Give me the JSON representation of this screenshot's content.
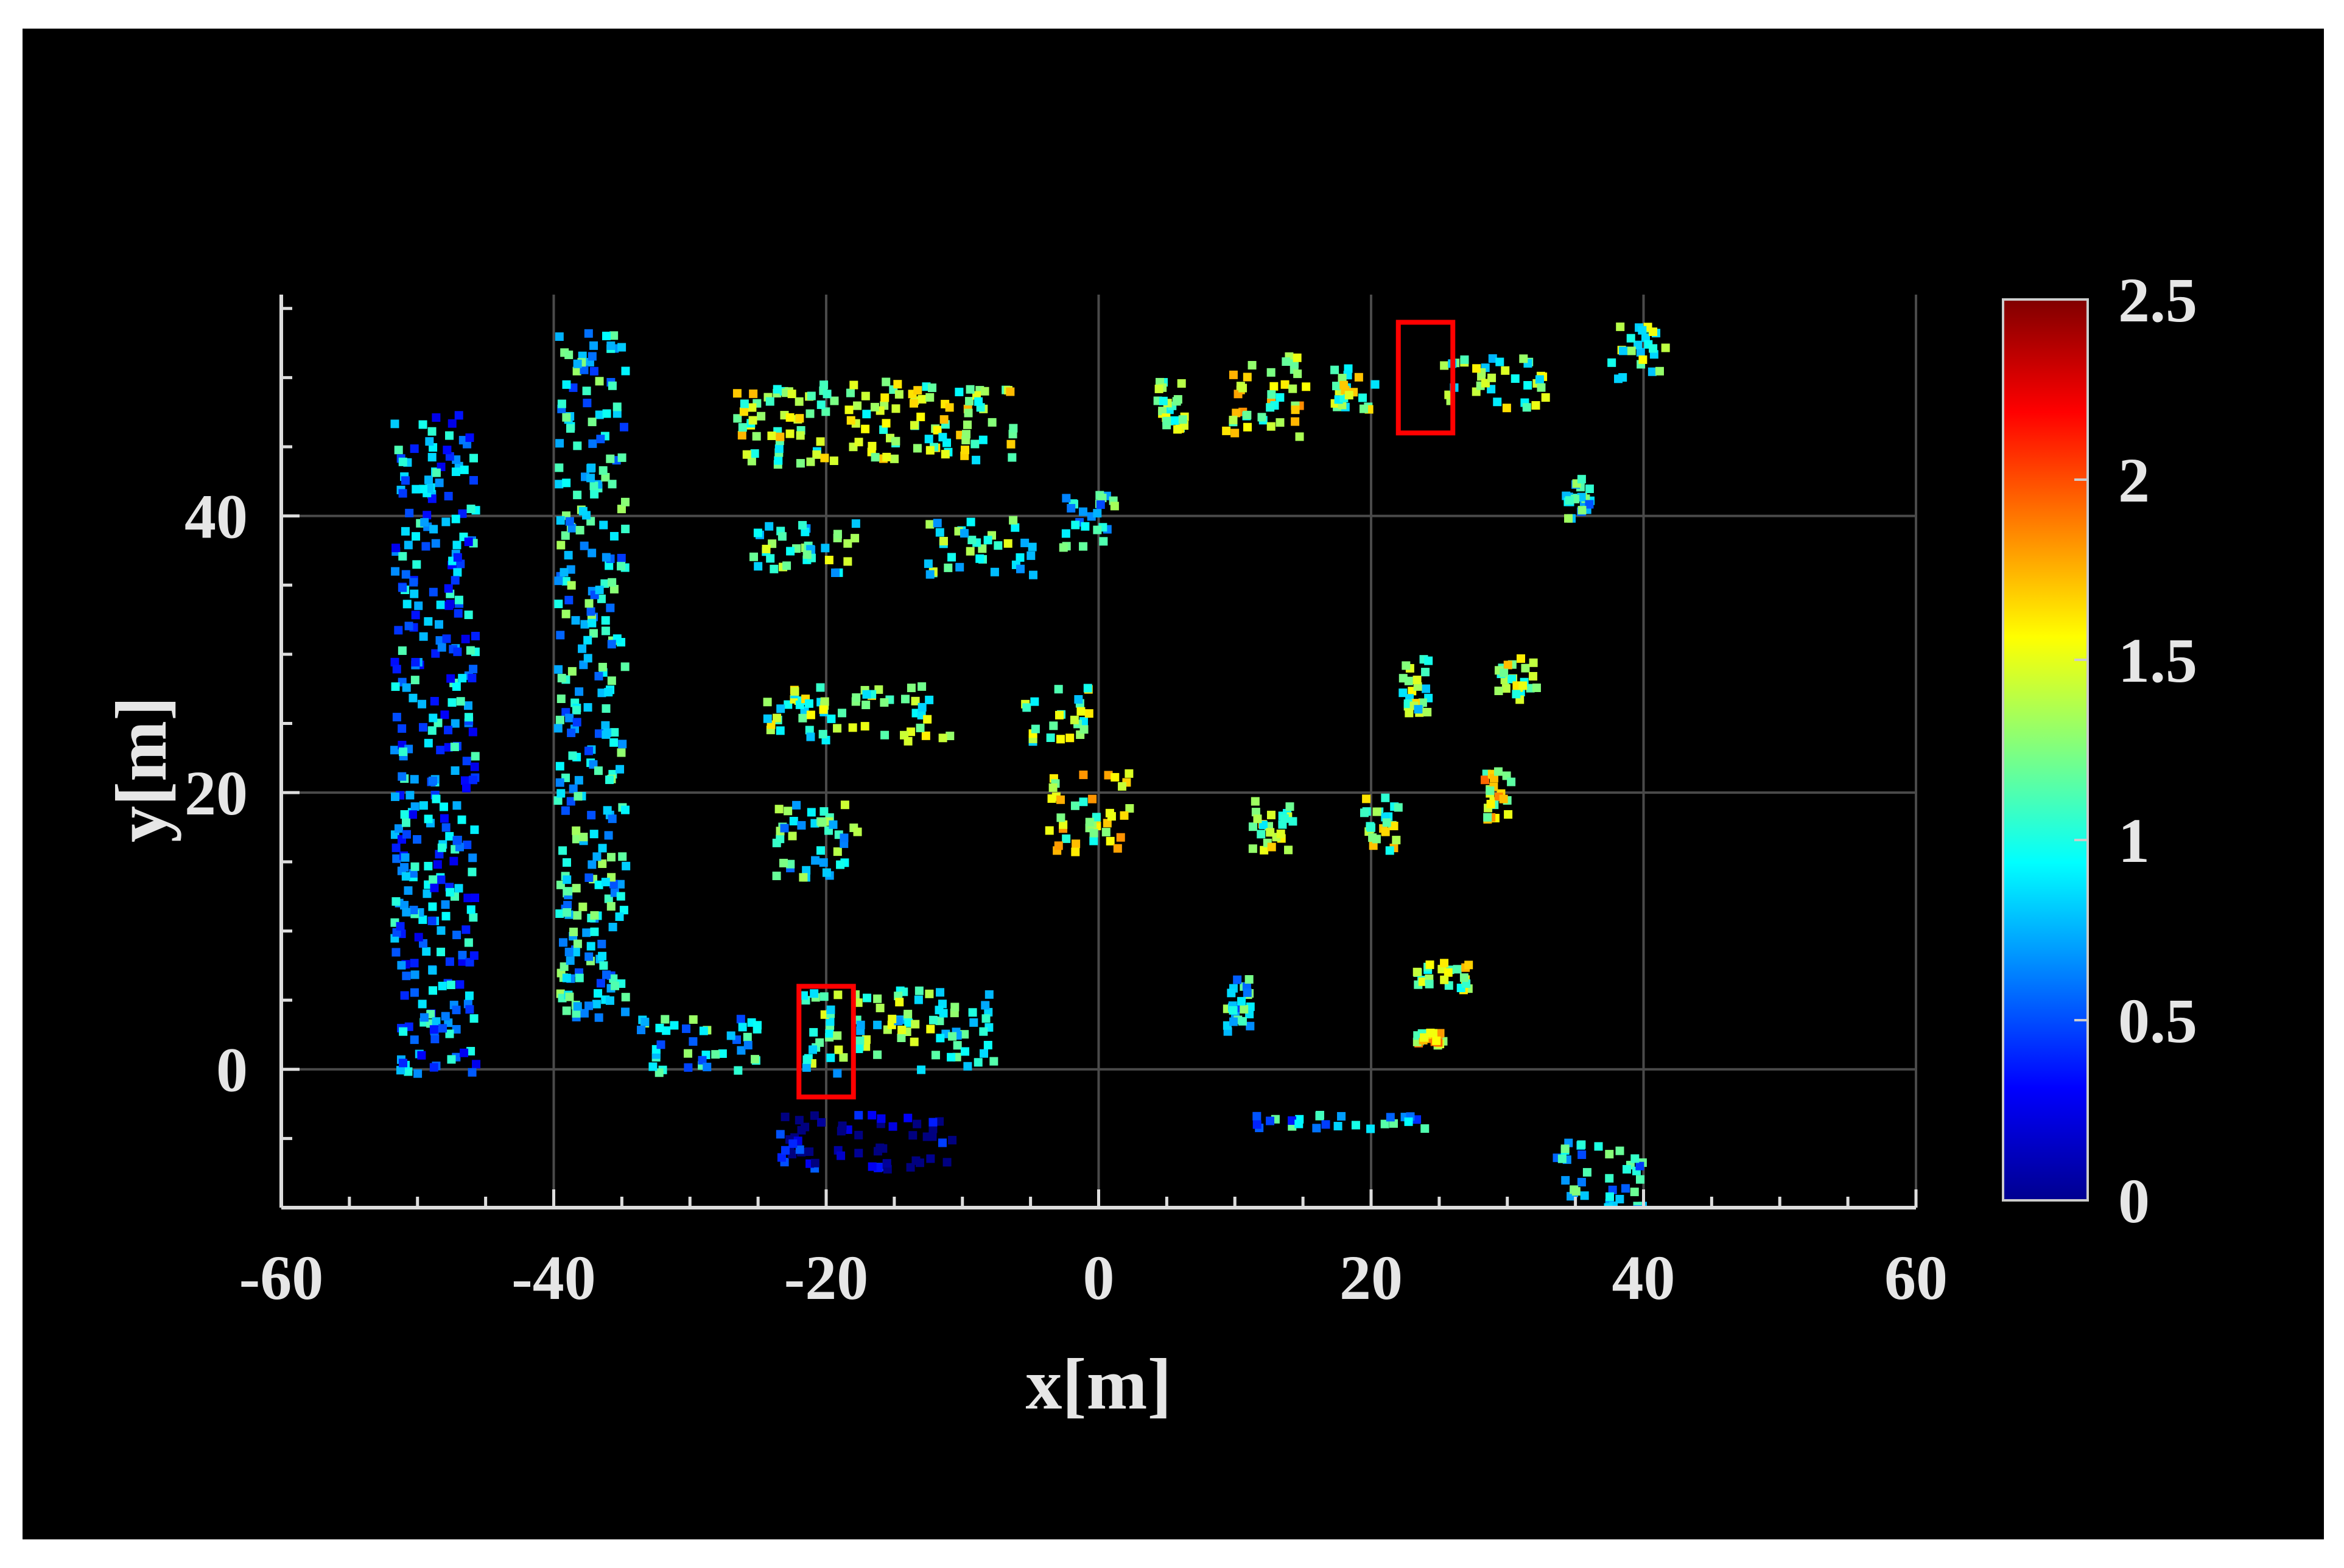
{
  "chart_data": {
    "type": "scatter",
    "xlabel": "x[m]",
    "ylabel": "y[m]",
    "xlim": [
      -60,
      60
    ],
    "ylim": [
      -10,
      56
    ],
    "x_ticks": [
      -60,
      -40,
      -20,
      0,
      20,
      40,
      60
    ],
    "y_ticks": [
      0,
      20,
      40
    ],
    "grid": true,
    "colorbar": {
      "range": [
        0,
        2.5
      ],
      "ticks": [
        "0",
        "0.5",
        "1",
        "1.5",
        "2",
        "2.5"
      ],
      "colormap": "jet"
    },
    "highlight_boxes": [
      {
        "x": [
          22,
          26
        ],
        "y": [
          46,
          54
        ]
      },
      {
        "x": [
          -22,
          -18
        ],
        "y": [
          -2,
          6
        ]
      }
    ],
    "clusters": [
      {
        "x": [
          -52,
          -46
        ],
        "y": [
          0,
          48
        ],
        "value": 0.7
      },
      {
        "x": [
          -40,
          -35
        ],
        "y": [
          4,
          54
        ],
        "value": 0.9
      },
      {
        "x": [
          -34,
          -25
        ],
        "y": [
          0,
          4
        ],
        "value": 0.9
      },
      {
        "x": [
          -22,
          -8
        ],
        "y": [
          0,
          6
        ],
        "value": 1.1
      },
      {
        "x": [
          -27,
          -6
        ],
        "y": [
          44,
          50
        ],
        "value": 1.3
      },
      {
        "x": [
          -26,
          -18
        ],
        "y": [
          36,
          40
        ],
        "value": 1.1
      },
      {
        "x": [
          -13,
          -5
        ],
        "y": [
          36,
          40
        ],
        "value": 1.1
      },
      {
        "x": [
          -3,
          1
        ],
        "y": [
          38,
          42
        ],
        "value": 0.9
      },
      {
        "x": [
          -25,
          -11
        ],
        "y": [
          24,
          28
        ],
        "value": 1.2
      },
      {
        "x": [
          -6,
          -1
        ],
        "y": [
          24,
          28
        ],
        "value": 1.2
      },
      {
        "x": [
          -24,
          -18
        ],
        "y": [
          14,
          20
        ],
        "value": 1.0
      },
      {
        "x": [
          -4,
          2
        ],
        "y": [
          16,
          22
        ],
        "value": 1.4
      },
      {
        "x": [
          4,
          6
        ],
        "y": [
          46,
          50
        ],
        "value": 1.2
      },
      {
        "x": [
          9,
          15
        ],
        "y": [
          46,
          52
        ],
        "value": 1.4
      },
      {
        "x": [
          17,
          20
        ],
        "y": [
          48,
          51
        ],
        "value": 1.3
      },
      {
        "x": [
          25,
          33
        ],
        "y": [
          48,
          52
        ],
        "value": 1.2
      },
      {
        "x": [
          37,
          42
        ],
        "y": [
          50,
          54
        ],
        "value": 1.2
      },
      {
        "x": [
          34,
          36
        ],
        "y": [
          40,
          43
        ],
        "value": 0.9
      },
      {
        "x": [
          22,
          24
        ],
        "y": [
          26,
          30
        ],
        "value": 1.2
      },
      {
        "x": [
          29,
          32
        ],
        "y": [
          27,
          30
        ],
        "value": 1.3
      },
      {
        "x": [
          11,
          14
        ],
        "y": [
          16,
          20
        ],
        "value": 1.3
      },
      {
        "x": [
          19,
          22
        ],
        "y": [
          16,
          20
        ],
        "value": 1.3
      },
      {
        "x": [
          28,
          30
        ],
        "y": [
          18,
          22
        ],
        "value": 1.5
      },
      {
        "x": [
          9,
          11
        ],
        "y": [
          3,
          7
        ],
        "value": 0.9
      },
      {
        "x": [
          23,
          27
        ],
        "y": [
          6,
          8
        ],
        "value": 1.3
      },
      {
        "x": [
          23,
          25
        ],
        "y": [
          2,
          3
        ],
        "value": 1.5
      },
      {
        "x": [
          -24,
          -11
        ],
        "y": [
          -7,
          -3
        ],
        "value": 0.1
      },
      {
        "x": [
          11,
          24
        ],
        "y": [
          -4,
          -3
        ],
        "value": 0.8
      },
      {
        "x": [
          33,
          40
        ],
        "y": [
          -10,
          -5
        ],
        "value": 0.9
      }
    ]
  }
}
